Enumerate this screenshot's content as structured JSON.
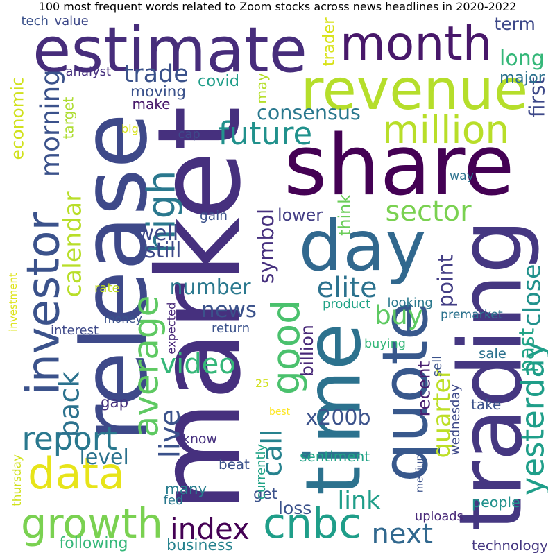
{
  "title": "100 most frequent words related to Zoom stocks across news headlines in 2020-2022",
  "words": [
    {
      "text": "market",
      "color": "#46307e"
    },
    {
      "text": "share",
      "color": "#440154"
    },
    {
      "text": "release",
      "color": "#3e4989"
    },
    {
      "text": "trading",
      "color": "#453781"
    },
    {
      "text": "day",
      "color": "#31688e"
    },
    {
      "text": "time",
      "color": "#2c728e"
    },
    {
      "text": "estimate",
      "color": "#472d7b"
    },
    {
      "text": "revenue",
      "color": "#b5de2b"
    },
    {
      "text": "month",
      "color": "#48186a"
    },
    {
      "text": "quote",
      "color": "#38588c"
    },
    {
      "text": "investor",
      "color": "#3b528b"
    },
    {
      "text": "data",
      "color": "#e7e419"
    },
    {
      "text": "growth",
      "color": "#7ad151"
    },
    {
      "text": "million",
      "color": "#b8de29"
    },
    {
      "text": "cnbc",
      "color": "#1f9e89"
    },
    {
      "text": "good",
      "color": "#4ac16d"
    },
    {
      "text": "buy",
      "color": "#5ec962"
    },
    {
      "text": "average",
      "color": "#5ec962"
    },
    {
      "text": "high",
      "color": "#2a788e"
    },
    {
      "text": "future",
      "color": "#21918c"
    },
    {
      "text": "call",
      "color": "#26828e"
    },
    {
      "text": "index",
      "color": "#440154"
    },
    {
      "text": "report",
      "color": "#2a788e"
    },
    {
      "text": "video",
      "color": "#35b779"
    },
    {
      "text": "next",
      "color": "#31688e"
    },
    {
      "text": "elite",
      "color": "#2c728e"
    },
    {
      "text": "news",
      "color": "#3b528b"
    },
    {
      "text": "yesterday",
      "color": "#1f9e89"
    },
    {
      "text": "back",
      "color": "#2c728e"
    },
    {
      "text": "close",
      "color": "#21918c"
    },
    {
      "text": "quarter",
      "color": "#bddf26"
    },
    {
      "text": "morning",
      "color": "#3b528b"
    },
    {
      "text": "calendar",
      "color": "#b8de29"
    },
    {
      "text": "sector",
      "color": "#7ad151"
    },
    {
      "text": "symbol",
      "color": "#46307e"
    },
    {
      "text": "live",
      "color": "#3b528b"
    },
    {
      "text": "billion",
      "color": "#482878"
    },
    {
      "text": "past",
      "color": "#20a386"
    },
    {
      "text": "consensus",
      "color": "#2a788e"
    },
    {
      "text": "long",
      "color": "#35b779"
    },
    {
      "text": "target",
      "color": "#addc30"
    },
    {
      "text": "trade",
      "color": "#3b528b"
    },
    {
      "text": "economic",
      "color": "#d0e11c"
    },
    {
      "text": "first",
      "color": "#3e4989"
    },
    {
      "text": "link",
      "color": "#1f9e89"
    },
    {
      "text": "number",
      "color": "#2a788e"
    },
    {
      "text": "x200b",
      "color": "#3b528b"
    },
    {
      "text": "point",
      "color": "#433e85"
    },
    {
      "text": "recent",
      "color": "#481f70"
    },
    {
      "text": "well",
      "color": "#3e4989"
    },
    {
      "text": "still",
      "color": "#3e4989"
    },
    {
      "text": "level",
      "color": "#2c728e"
    },
    {
      "text": "get",
      "color": "#3b528b"
    },
    {
      "text": "major",
      "color": "#2c728e"
    },
    {
      "text": "trader",
      "color": "#d8e219"
    },
    {
      "text": "term",
      "color": "#3e4989"
    },
    {
      "text": "may",
      "color": "#b5de2b"
    },
    {
      "text": "covid",
      "color": "#1f9e89"
    },
    {
      "text": "moving",
      "color": "#3b528b"
    },
    {
      "text": "make",
      "color": "#48186a"
    },
    {
      "text": "think",
      "color": "#6ccd5a"
    },
    {
      "text": "lower",
      "color": "#433e85"
    },
    {
      "text": "gain",
      "color": "#3b528b"
    },
    {
      "text": "sentiment",
      "color": "#20a386"
    },
    {
      "text": "loss",
      "color": "#3b528b"
    },
    {
      "text": "many",
      "color": "#287d8e"
    },
    {
      "text": "following",
      "color": "#35b779"
    },
    {
      "text": "business",
      "color": "#26828e"
    },
    {
      "text": "technology",
      "color": "#453781"
    },
    {
      "text": "people",
      "color": "#21918c"
    },
    {
      "text": "uploads",
      "color": "#482878"
    },
    {
      "text": "sale",
      "color": "#2c728e"
    },
    {
      "text": "sell",
      "color": "#3b528b"
    },
    {
      "text": "take",
      "color": "#3b528b"
    },
    {
      "text": "wednesday",
      "color": "#3e4989"
    },
    {
      "text": "money",
      "color": "#3b528b"
    },
    {
      "text": "expected",
      "color": "#482878"
    },
    {
      "text": "gap",
      "color": "#46307e"
    },
    {
      "text": "know",
      "color": "#46307e"
    },
    {
      "text": "beat",
      "color": "#3b528b"
    },
    {
      "text": "fed",
      "color": "#2a788e"
    },
    {
      "text": "currently",
      "color": "#20a386"
    },
    {
      "text": "medium",
      "color": "#3b528b"
    },
    {
      "text": "buying",
      "color": "#35b779"
    },
    {
      "text": "return",
      "color": "#3b528b"
    },
    {
      "text": "interest",
      "color": "#3e4989"
    },
    {
      "text": "premarket",
      "color": "#2c728e"
    },
    {
      "text": "product",
      "color": "#20a386"
    },
    {
      "text": "looking",
      "color": "#2a788e"
    },
    {
      "text": "rate",
      "color": "#c2df23"
    },
    {
      "text": "investment",
      "color": "#dde318"
    },
    {
      "text": "thursday",
      "color": "#d0e11c"
    },
    {
      "text": "analyst",
      "color": "#46307e"
    },
    {
      "text": "tech",
      "color": "#3b528b"
    },
    {
      "text": "value",
      "color": "#3e4989"
    },
    {
      "text": "cap",
      "color": "#3e4989"
    },
    {
      "text": "big",
      "color": "#d8e219"
    },
    {
      "text": "way",
      "color": "#2c728e"
    },
    {
      "text": "25",
      "color": "#d0e11c"
    },
    {
      "text": "best",
      "color": "#fde725"
    }
  ]
}
